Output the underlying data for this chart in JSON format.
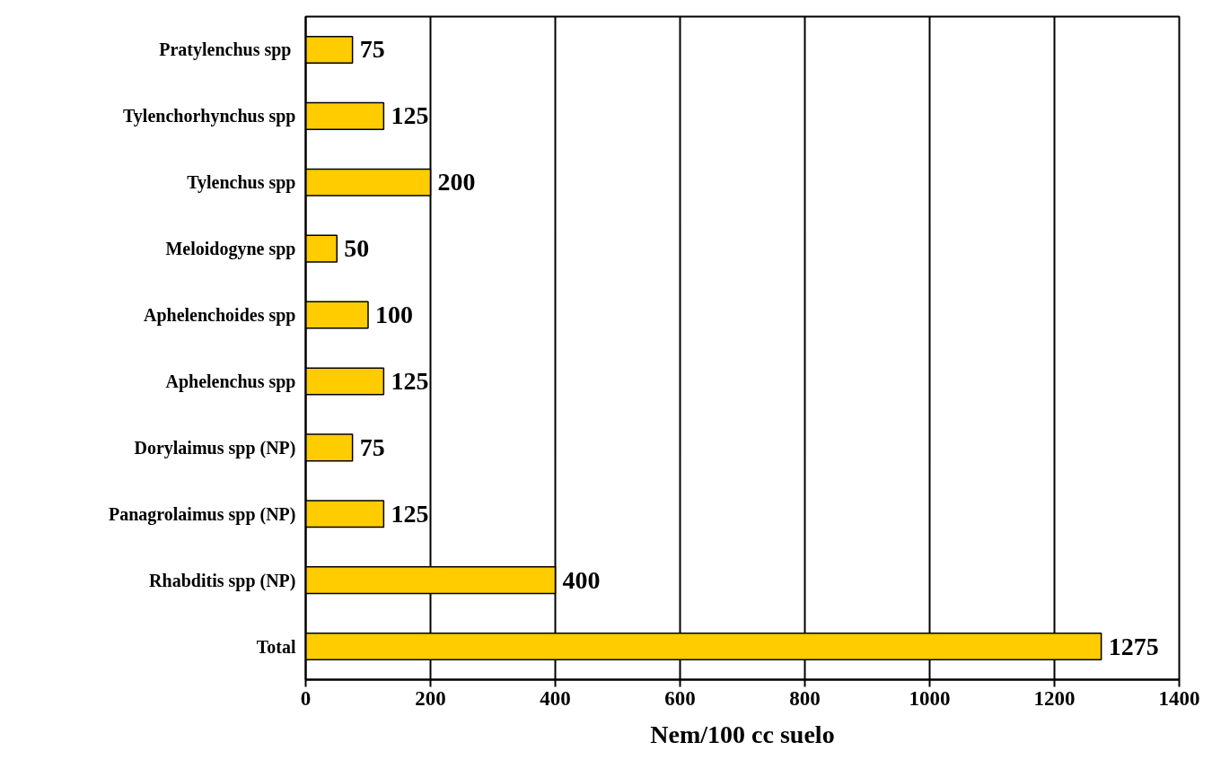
{
  "chart_data": {
    "type": "bar",
    "orientation": "horizontal",
    "xlabel": "Nem/100 cc suelo",
    "categories": [
      "Pratylenchus  spp",
      "Tylenchorhynchus spp",
      "Tylenchus spp",
      "Meloidogyne spp",
      "Aphelenchoides spp",
      "Aphelenchus spp",
      "Dorylaimus spp (NP)",
      "Panagrolaimus spp (NP)",
      "Rhabditis spp (NP)",
      "Total"
    ],
    "values": [
      75,
      125,
      200,
      50,
      100,
      125,
      75,
      125,
      400,
      1275
    ],
    "color": "#ffcc00",
    "xlim": [
      0,
      1400
    ],
    "xticks": [
      0,
      200,
      400,
      600,
      800,
      1000,
      1200,
      1400
    ],
    "grid": "x",
    "data_labels": true
  }
}
